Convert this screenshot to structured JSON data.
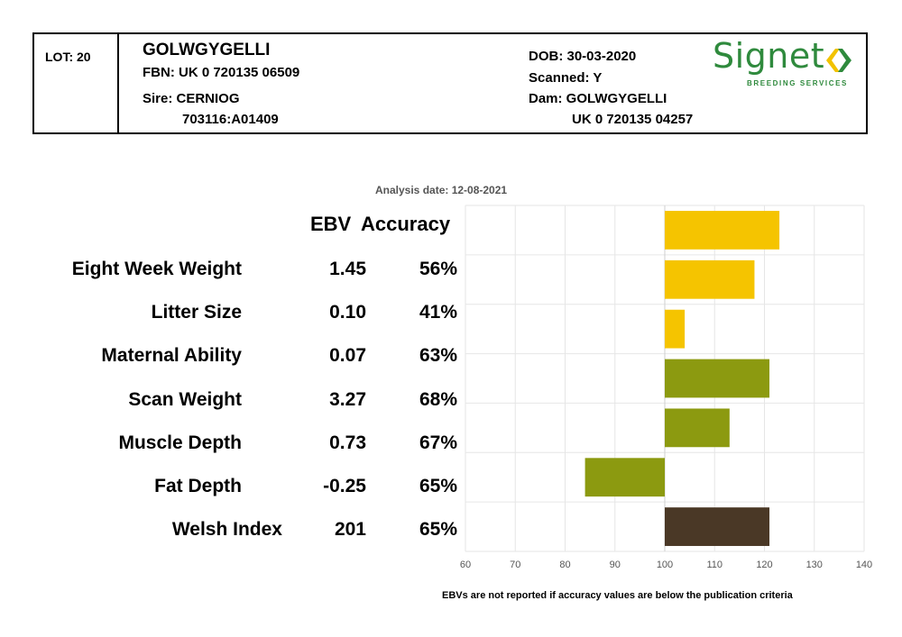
{
  "header": {
    "lot": "LOT: 20",
    "name": "GOLWGYGELLI",
    "fbn": "FBN: UK 0 720135 06509",
    "sire_label": "Sire: CERNIOG",
    "sire_id": "703116:A01409",
    "dob": "DOB: 30-03-2020",
    "scanned": "Scanned: Y",
    "dam_label": "Dam: GOLWGYGELLI",
    "dam_id": "UK 0 720135 04257"
  },
  "logo": {
    "word": "Signet",
    "sub": "BREEDING SERVICES",
    "mark_colors": [
      "#f2c200",
      "#2f8a3d"
    ]
  },
  "analysis_date": "Analysis date: 12-08-2021",
  "columns": {
    "ebv": "EBV",
    "accuracy": "Accuracy"
  },
  "traits": [
    {
      "name": "Eight Week Weight",
      "ebv": "1.45",
      "accuracy": "56%"
    },
    {
      "name": "Litter Size",
      "ebv": "0.10",
      "accuracy": "41%"
    },
    {
      "name": "Maternal Ability",
      "ebv": "0.07",
      "accuracy": "63%"
    },
    {
      "name": "Scan Weight",
      "ebv": "3.27",
      "accuracy": "68%"
    },
    {
      "name": "Muscle Depth",
      "ebv": "0.73",
      "accuracy": "67%"
    },
    {
      "name": "Fat Depth",
      "ebv": "-0.25",
      "accuracy": "65%"
    },
    {
      "name": "Welsh Index",
      "ebv": "201",
      "accuracy": "65%"
    }
  ],
  "footnote": "EBVs are not reported if accuracy values are below the publication criteria",
  "chart_data": {
    "type": "bar",
    "orientation": "horizontal",
    "baseline": 100,
    "xlim": [
      60,
      140
    ],
    "xticks": [
      "60",
      "70",
      "80",
      "90",
      "100",
      "110",
      "120",
      "130",
      "140"
    ],
    "grid": true,
    "categories": [
      "Eight Week Weight",
      "Litter Size",
      "Maternal Ability",
      "Scan Weight",
      "Muscle Depth",
      "Fat Depth",
      "Welsh Index"
    ],
    "values": [
      123,
      118,
      104,
      121,
      113,
      84,
      121
    ],
    "colors": [
      "#f5c400",
      "#f5c400",
      "#f5c400",
      "#8c9a10",
      "#8c9a10",
      "#8c9a10",
      "#4a3826"
    ]
  }
}
